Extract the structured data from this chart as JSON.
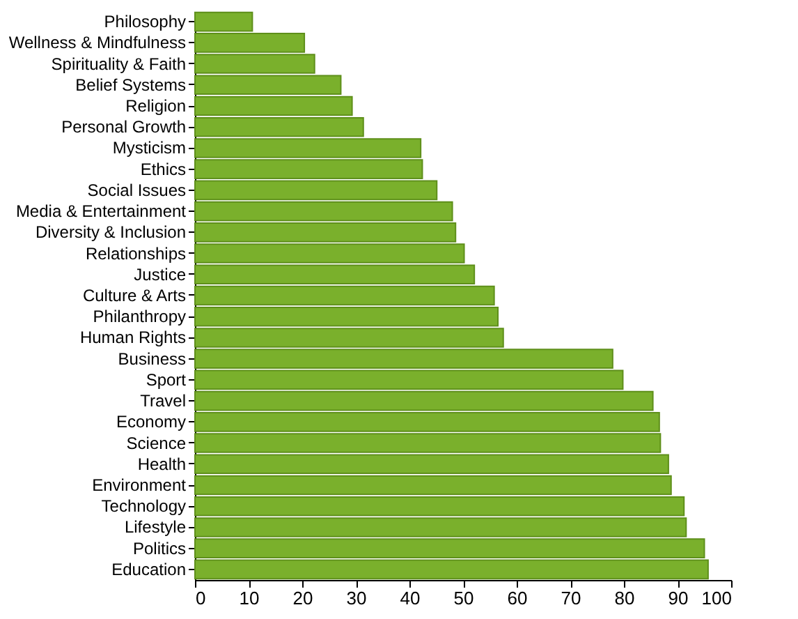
{
  "chart_data": {
    "type": "bar",
    "orientation": "horizontal",
    "categories": [
      "Philosophy",
      "Wellness & Mindfulness",
      "Spirituality & Faith",
      "Belief Systems",
      "Religion",
      "Personal Growth",
      "Mysticism",
      "Ethics",
      "Social Issues",
      "Media & Entertainment",
      "Diversity & Inclusion",
      "Relationships",
      "Justice",
      "Culture & Arts",
      "Philanthropy",
      "Human Rights",
      "Business",
      "Sport",
      "Travel",
      "Economy",
      "Science",
      "Health",
      "Environment",
      "Technology",
      "Lifestyle",
      "Politics",
      "Education"
    ],
    "values": [
      10.7,
      20.4,
      22.3,
      27.2,
      29.3,
      31.4,
      42.1,
      42.4,
      45.1,
      48.0,
      48.6,
      50.2,
      52.1,
      55.8,
      56.5,
      57.5,
      77.9,
      79.8,
      85.4,
      86.6,
      86.8,
      88.3,
      88.8,
      91.2,
      91.6,
      95.0,
      95.7
    ],
    "color": "#7ab02c",
    "xlim": [
      0,
      100
    ],
    "xticks": [
      0,
      10,
      20,
      30,
      40,
      50,
      60,
      70,
      80,
      90,
      100
    ],
    "grid": false
  }
}
